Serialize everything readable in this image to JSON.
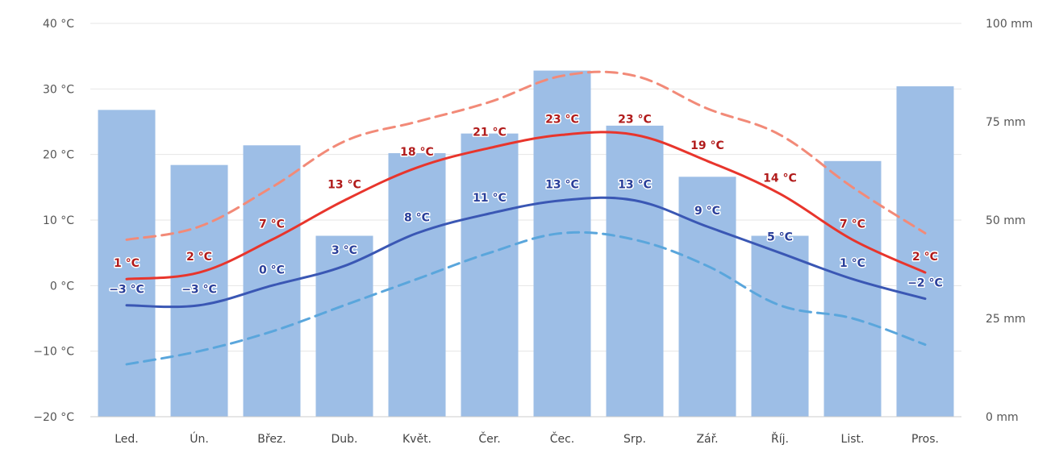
{
  "chart_data": {
    "type": "bar",
    "categories": [
      "Led.",
      "Ún.",
      "Břez.",
      "Dub.",
      "Květ.",
      "Čer.",
      "Čec.",
      "Srp.",
      "Zář.",
      "Říj.",
      "List.",
      "Pros."
    ],
    "y_left": {
      "min": -20,
      "max": 40,
      "ticks": [
        {
          "value": -20,
          "label": "−20 °C"
        },
        {
          "value": -10,
          "label": "−10 °C"
        },
        {
          "value": 0,
          "label": "0 °C"
        },
        {
          "value": 10,
          "label": "10 °C"
        },
        {
          "value": 20,
          "label": "20 °C"
        },
        {
          "value": 30,
          "label": "30 °C"
        },
        {
          "value": 40,
          "label": "40 °C"
        }
      ]
    },
    "y_right": {
      "min": 0,
      "max": 100,
      "ticks": [
        {
          "value": 0,
          "label": "0 mm"
        },
        {
          "value": 25,
          "label": "25 mm"
        },
        {
          "value": 50,
          "label": "50 mm"
        },
        {
          "value": 75,
          "label": "75 mm"
        },
        {
          "value": 100,
          "label": "100 mm"
        }
      ]
    },
    "grid": true,
    "legend": "none",
    "series": [
      {
        "kind": "bar",
        "axis": "right",
        "color": "#9dbee6",
        "values": [
          78,
          64,
          69,
          46,
          67,
          72,
          88,
          74,
          61,
          46,
          65,
          84
        ]
      },
      {
        "kind": "line",
        "axis": "left",
        "color": "#e8352c",
        "label_color": "#b11b1b",
        "values": [
          1,
          2,
          7,
          13,
          18,
          21,
          23,
          23,
          19,
          14,
          7,
          2
        ],
        "labels": [
          "1 °C",
          "2 °C",
          "7 °C",
          "13 °C",
          "18 °C",
          "21 °C",
          "23 °C",
          "23 °C",
          "19 °C",
          "14 °C",
          "7 °C",
          "2 °C"
        ]
      },
      {
        "kind": "line",
        "axis": "left",
        "color": "#3a57b4",
        "label_color": "#2a3f9a",
        "values": [
          -3,
          -3,
          0,
          3,
          8,
          11,
          13,
          13,
          9,
          5,
          1,
          -2
        ],
        "labels": [
          "−3 °C",
          "−3 °C",
          "0 °C",
          "3 °C",
          "8 °C",
          "11 °C",
          "13 °C",
          "13 °C",
          "9 °C",
          "5 °C",
          "1 °C",
          "−2 °C"
        ]
      },
      {
        "kind": "line",
        "axis": "left",
        "style": "dashed",
        "color": "#f28a78",
        "values": [
          7,
          9,
          15,
          22,
          25,
          28,
          32,
          32,
          27,
          23,
          15,
          8
        ]
      },
      {
        "kind": "line",
        "axis": "left",
        "style": "dashed",
        "color": "#5aa6dc",
        "values": [
          -12,
          -10,
          -7,
          -3,
          1,
          5,
          8,
          7,
          3,
          -3,
          -5,
          -9
        ]
      }
    ]
  }
}
